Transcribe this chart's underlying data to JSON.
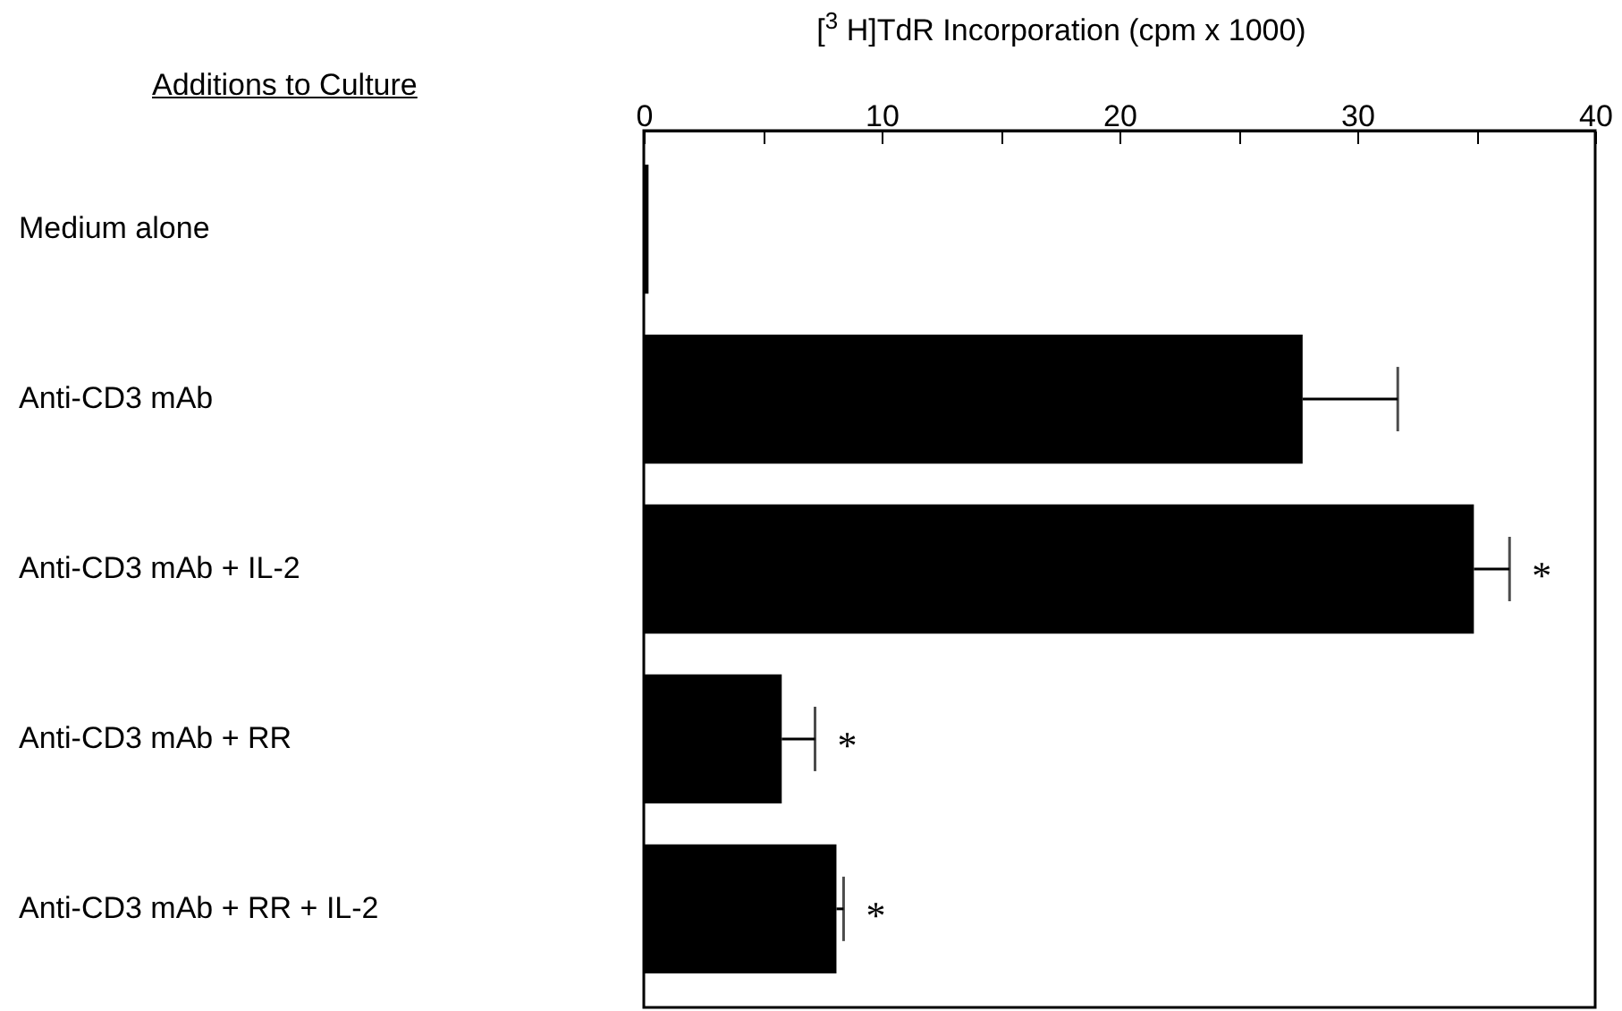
{
  "chart_data": {
    "type": "bar",
    "orientation": "horizontal",
    "xlabel": "[$^{3}$ H]TdR Incorporation (cpm x 1000)",
    "ylabel": "Additions to Culture",
    "categories": [
      "Medium alone",
      "Anti-CD3 mAb",
      "Anti-CD3 mAb + IL-2",
      "Anti-CD3 mAb + RR",
      "Anti-CD3 mAb + RR + IL-2"
    ],
    "series": [
      {
        "color": "#000000",
        "axis": "x2",
        "values": [
          0.2,
          27.7,
          34.9,
          5.8,
          8.1
        ],
        "errors": [
          null,
          [
            27.7,
            31.7
          ],
          [
            34.9,
            36.4
          ],
          [
            5.8,
            7.2
          ],
          [
            8.1,
            8.4
          ]
        ]
      }
    ],
    "x2lim": [
      0,
      40
    ],
    "x2ticks": [
      0,
      {
        "value": 5,
        "label": null
      },
      10,
      {
        "value": 15,
        "label": null
      },
      20,
      {
        "value": 25,
        "label": null
      },
      30,
      {
        "value": 35,
        "label": null
      },
      40
    ],
    "grid": false,
    "annotations": [
      {
        "text": "*",
        "x": 36.4,
        "y": "Anti-CD3 mAb + IL-2"
      },
      {
        "text": "*",
        "x": 7.2,
        "y": "Anti-CD3 mAb + RR"
      },
      {
        "text": "*",
        "x": 8.4,
        "y": "Anti-CD3 mAb + RR + IL-2"
      }
    ]
  }
}
